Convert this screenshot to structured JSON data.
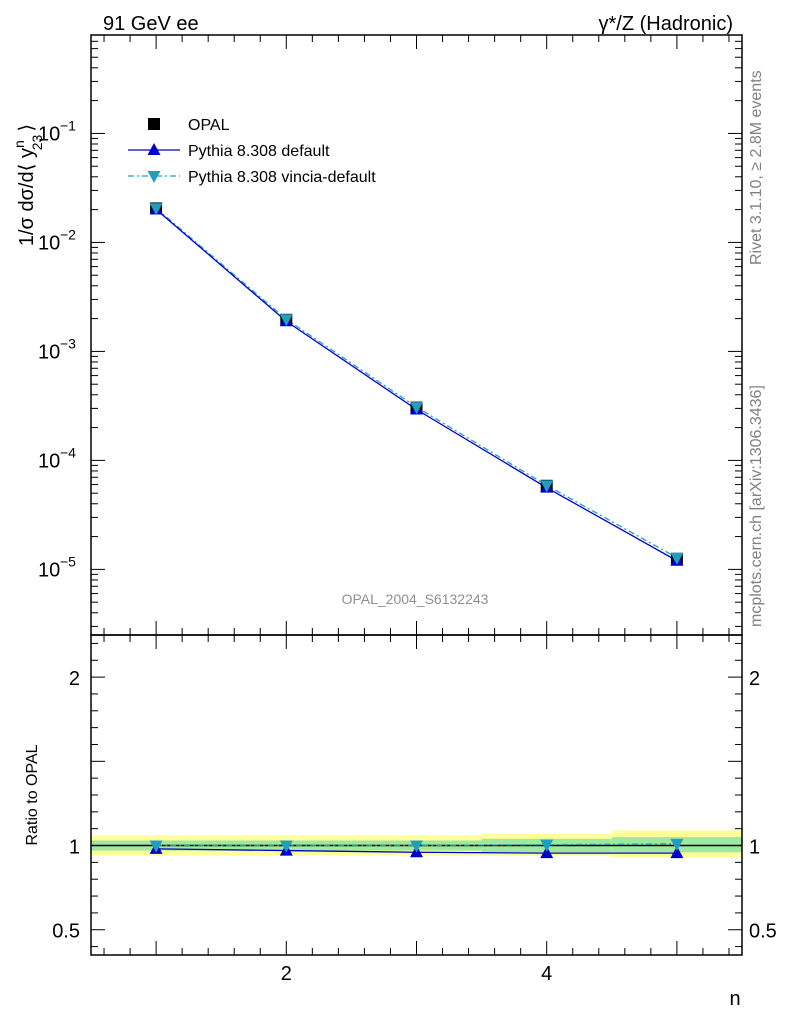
{
  "header": {
    "left": "91 GeV ee",
    "right": "γ*/Z (Hadronic)"
  },
  "side_labels": {
    "rivet": "Rivet 3.1.10, ≥ 2.8M events",
    "mcplots": "mcplots.cern.ch [arXiv:1306.3436]"
  },
  "watermark": "OPAL_2004_S6132243",
  "legend": [
    {
      "label": "OPAL",
      "marker": "square",
      "color": "#000000"
    },
    {
      "label": "Pythia 8.308 default",
      "marker": "triangle-up",
      "color": "#0000cc"
    },
    {
      "label": "Pythia 8.308 vincia-default",
      "marker": "triangle-down",
      "color": "#1f9fbf"
    }
  ],
  "chart_data": [
    {
      "type": "line",
      "panel": "main",
      "ylabel": "1/σ dσ/d⟨ y",
      "ylabel_sup": "n",
      "ylabel_sub": "23",
      "ylabel_close": "⟩",
      "yscale": "log",
      "xlim": [
        0.5,
        5.5
      ],
      "ylim": [
        2.5e-06,
        0.8
      ],
      "ytick_labels": [
        "10",
        "10",
        "10",
        "10",
        "10"
      ],
      "ytick_exponents": [
        "−5",
        "−4",
        "−3",
        "−2",
        "−1"
      ],
      "ytick_values": [
        1e-05,
        0.0001,
        0.001,
        0.01,
        0.1
      ],
      "x": [
        1,
        2,
        3,
        4,
        5
      ],
      "series": [
        {
          "name": "OPAL",
          "values": [
            0.0205,
            0.00195,
            0.000305,
            5.85e-05,
            1.25e-05
          ]
        },
        {
          "name": "Pythia 8.308 default",
          "values": [
            0.0201,
            0.00189,
            0.000293,
            5.62e-05,
            1.2e-05
          ]
        },
        {
          "name": "Pythia 8.308 vincia-default",
          "values": [
            0.0206,
            0.00197,
            0.000308,
            5.9e-05,
            1.28e-05
          ]
        }
      ]
    },
    {
      "type": "line",
      "panel": "ratio",
      "ylabel": "Ratio to OPAL",
      "xlabel": "n",
      "xlim": [
        0.5,
        5.5
      ],
      "ylim": [
        0.35,
        2.25
      ],
      "xticks": [
        "2",
        "4"
      ],
      "ytick_labels": [
        "0.5",
        "1",
        "2"
      ],
      "ytick_values": [
        0.5,
        1,
        2
      ],
      "x": [
        1,
        2,
        3,
        4,
        5
      ],
      "band_outer": [
        [
          0.94,
          1.06
        ],
        [
          0.94,
          1.06
        ],
        [
          0.94,
          1.06
        ],
        [
          0.94,
          1.07
        ],
        [
          0.93,
          1.09
        ]
      ],
      "band_inner": [
        [
          0.97,
          1.03
        ],
        [
          0.97,
          1.03
        ],
        [
          0.97,
          1.03
        ],
        [
          0.96,
          1.04
        ],
        [
          0.96,
          1.05
        ]
      ],
      "series": [
        {
          "name": "Pythia 8.308 default",
          "values": [
            0.98,
            0.97,
            0.96,
            0.955,
            0.955
          ]
        },
        {
          "name": "Pythia 8.308 vincia-default",
          "values": [
            1.0,
            1.0,
            1.0,
            1.005,
            1.01
          ]
        }
      ]
    }
  ]
}
